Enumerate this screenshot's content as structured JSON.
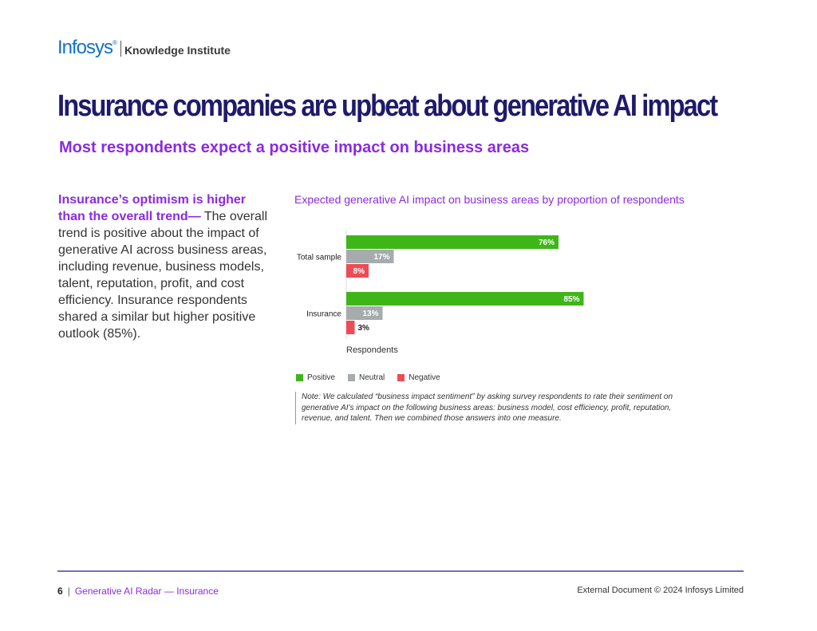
{
  "header": {
    "brand": "Infosys",
    "brand_mark": "®",
    "institute": "Knowledge Institute"
  },
  "title": "Insurance companies are upbeat about generative AI impact",
  "subtitle": "Most respondents expect a positive impact on business areas",
  "body": {
    "lead": "Insurance’s optimism is higher than the overall trend—",
    "text": " The overall trend is positive about the impact of generative AI across business areas, including revenue, business models, talent, reputation, profit, and cost efficiency. Insurance respondents shared a similar but higher positive outlook (85%)."
  },
  "chart_data": {
    "type": "bar",
    "orientation": "horizontal",
    "title": "Expected generative AI impact on business areas by proportion of respondents",
    "categories": [
      "Total sample",
      "Insurance"
    ],
    "series": [
      {
        "name": "Positive",
        "values": [
          76,
          85
        ],
        "labels": [
          "76%",
          "85%"
        ],
        "color": "#3fb618"
      },
      {
        "name": "Neutral",
        "values": [
          17,
          13
        ],
        "labels": [
          "17%",
          "13%"
        ],
        "color": "#a6abad"
      },
      {
        "name": "Negative",
        "values": [
          8,
          3
        ],
        "labels": [
          "8%",
          "3%"
        ],
        "color": "#ee4c55"
      }
    ],
    "xlabel": "Respondents",
    "xlim": [
      0,
      100
    ],
    "legend": "bottom-left",
    "grid": false
  },
  "note": "Note: We calculated “business impact sentiment” by asking survey respondents to rate their sentiment on generative AI's impact on the following business areas: business model, cost efficiency, profit, reputation, revenue, and talent. Then we combined those answers into one measure.",
  "footer": {
    "page": "6",
    "separator": "|",
    "doc_title": "Generative AI Radar — Insurance",
    "copyright": "External Document © 2024 Infosys Limited"
  }
}
